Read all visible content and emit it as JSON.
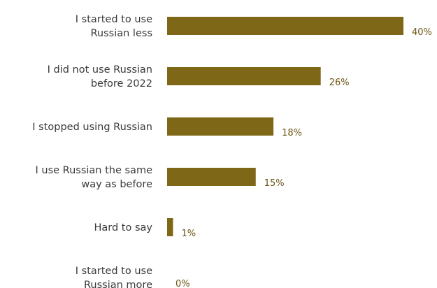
{
  "chart_data": {
    "type": "bar",
    "orientation": "horizontal",
    "categories": [
      [
        "I started to use",
        "Russian less"
      ],
      [
        "I did not use Russian",
        "before 2022"
      ],
      [
        "I stopped using Russian"
      ],
      [
        "I use Russian the same",
        "way as before"
      ],
      [
        "Hard to say"
      ],
      [
        "I started to use",
        "Russian more"
      ]
    ],
    "values": [
      40,
      26,
      18,
      15,
      1,
      0
    ],
    "value_labels": [
      "40%",
      "26%",
      "18%",
      "15%",
      "1%",
      "0%"
    ],
    "unit": "%",
    "title": "",
    "xlabel": "",
    "ylabel": "",
    "xlim": [
      0,
      40
    ],
    "grid": false,
    "legend": "none",
    "bar_color": "#7f6718",
    "label_color": "#6b5414",
    "text_color": "#3a3a3a"
  }
}
